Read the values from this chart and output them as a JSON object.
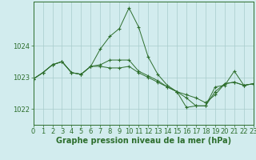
{
  "background_color": "#d2ecee",
  "grid_color": "#a8cccc",
  "line_color": "#2d6e2d",
  "title": "Graphe pression niveau de la mer (hPa)",
  "title_fontsize": 7.0,
  "tick_fontsize": 6.0,
  "xlim": [
    0,
    23
  ],
  "ylim": [
    1021.5,
    1025.4
  ],
  "yticks": [
    1022,
    1023,
    1024
  ],
  "xticks": [
    0,
    1,
    2,
    3,
    4,
    5,
    6,
    7,
    8,
    9,
    10,
    11,
    12,
    13,
    14,
    15,
    16,
    17,
    18,
    19,
    20,
    21,
    22,
    23
  ],
  "series1": [
    1022.95,
    1023.15,
    1023.4,
    1023.5,
    1023.15,
    1023.1,
    1023.35,
    1023.9,
    1024.3,
    1024.55,
    1025.2,
    1024.6,
    1023.65,
    1023.1,
    1022.75,
    1022.55,
    1022.05,
    1022.1,
    1022.1,
    1022.7,
    1022.75,
    1023.2,
    1022.75,
    1022.8
  ],
  "series2": [
    1022.95,
    1023.15,
    1023.4,
    1023.5,
    1023.15,
    1023.1,
    1023.35,
    1023.4,
    1023.55,
    1023.55,
    1023.55,
    1023.2,
    1023.05,
    1022.9,
    1022.7,
    1022.55,
    1022.35,
    1022.1,
    1022.1,
    1022.55,
    1022.8,
    1022.85,
    1022.75,
    1022.8
  ],
  "series3": [
    1022.95,
    1023.15,
    1023.4,
    1023.5,
    1023.15,
    1023.1,
    1023.35,
    1023.35,
    1023.3,
    1023.3,
    1023.35,
    1023.15,
    1023.0,
    1022.85,
    1022.7,
    1022.55,
    1022.45,
    1022.35,
    1022.2,
    1022.45,
    1022.8,
    1022.85,
    1022.75,
    1022.8
  ]
}
